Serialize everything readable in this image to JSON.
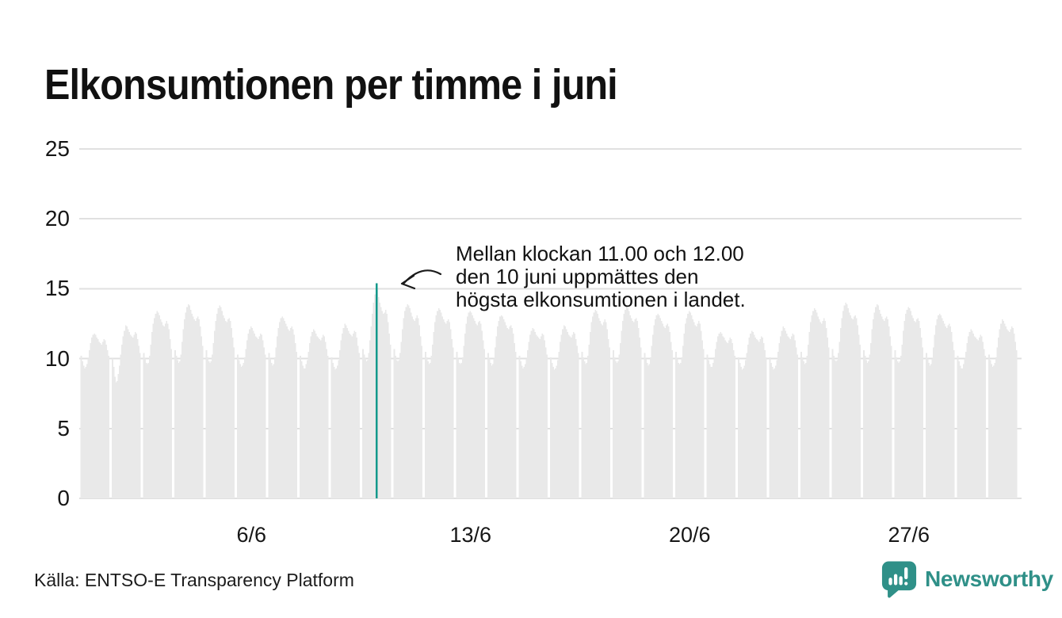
{
  "title": "Elkonsumtionen per timme i juni",
  "annotation": {
    "lines": [
      "Mellan klockan 11.00 och 12.00",
      "den 10 juni uppmättes den",
      "högsta elkonsumtionen i landet."
    ]
  },
  "source": "Källa: ENTSO-E Transparency Platform",
  "logo": {
    "text": "Newsworthy",
    "icon": "speech-bubble-bar-chart-icon"
  },
  "colors": {
    "bar": "#e9e9e9",
    "grid": "#e0e0e0",
    "highlight": "#13998b",
    "text": "#161616",
    "logo_teal": "#2f9088"
  },
  "chart_data": {
    "type": "bar",
    "title": "Elkonsumtionen per timme i juni",
    "xlabel": "",
    "ylabel": "",
    "ylim": [
      0,
      25
    ],
    "y_ticks": [
      0,
      5,
      10,
      15,
      20,
      25
    ],
    "x_tick_labels": [
      {
        "day": 6,
        "label": "6/6"
      },
      {
        "day": 13,
        "label": "13/6"
      },
      {
        "day": 20,
        "label": "20/6"
      },
      {
        "day": 27,
        "label": "27/6"
      }
    ],
    "days": 30,
    "hours_per_day": 24,
    "highlight": {
      "day": 10,
      "hour": 11,
      "value": 15.4,
      "note": "högsta elkonsumtionen"
    },
    "hourly_values_by_day": [
      [
        10.2,
        9.8,
        9.5,
        9.3,
        9.4,
        9.6,
        10.0,
        10.6,
        11.1,
        11.5,
        11.7,
        11.8,
        11.7,
        11.5,
        11.4,
        11.2,
        11.1,
        11.0,
        11.2,
        11.4,
        11.3,
        11.0,
        10.6,
        10.2
      ],
      [
        10.0,
        9.4,
        8.7,
        8.3,
        8.4,
        8.9,
        9.5,
        10.3,
        11.0,
        11.6,
        12.0,
        12.4,
        12.3,
        12.1,
        11.9,
        11.7,
        11.6,
        11.5,
        11.7,
        11.9,
        11.8,
        11.4,
        10.9,
        10.4
      ],
      [
        10.4,
        10.0,
        9.7,
        9.6,
        9.7,
        10.2,
        11.0,
        11.9,
        12.5,
        12.9,
        13.2,
        13.4,
        13.3,
        13.1,
        12.8,
        12.6,
        12.4,
        12.3,
        12.5,
        12.7,
        12.5,
        12.1,
        11.4,
        10.7
      ],
      [
        10.6,
        10.2,
        9.9,
        9.7,
        9.8,
        10.3,
        11.2,
        12.1,
        12.8,
        13.3,
        13.7,
        13.9,
        13.8,
        13.5,
        13.2,
        13.0,
        12.8,
        12.7,
        12.9,
        13.0,
        12.8,
        12.3,
        11.6,
        10.9
      ],
      [
        10.6,
        10.1,
        9.8,
        9.7,
        9.8,
        10.3,
        11.1,
        12.0,
        12.7,
        13.2,
        13.6,
        13.8,
        13.7,
        13.4,
        13.1,
        12.9,
        12.7,
        12.6,
        12.8,
        12.9,
        12.7,
        12.2,
        11.5,
        10.8
      ],
      [
        10.3,
        9.9,
        9.6,
        9.4,
        9.5,
        9.7,
        10.1,
        10.7,
        11.3,
        11.8,
        12.1,
        12.3,
        12.2,
        12.0,
        11.8,
        11.6,
        11.5,
        11.4,
        11.6,
        11.8,
        11.7,
        11.3,
        10.8,
        10.3
      ],
      [
        10.4,
        10.0,
        9.7,
        9.5,
        9.6,
        10.1,
        10.8,
        11.6,
        12.2,
        12.6,
        12.9,
        13.0,
        12.9,
        12.7,
        12.5,
        12.3,
        12.1,
        12.0,
        12.2,
        12.3,
        12.1,
        11.7,
        11.1,
        10.5
      ],
      [
        10.2,
        9.8,
        9.5,
        9.3,
        9.3,
        9.6,
        9.9,
        10.5,
        11.1,
        11.6,
        11.9,
        12.1,
        12.0,
        11.8,
        11.6,
        11.5,
        11.4,
        11.3,
        11.5,
        11.7,
        11.6,
        11.2,
        10.7,
        10.2
      ],
      [
        10.1,
        9.7,
        9.4,
        9.2,
        9.3,
        9.5,
        9.9,
        10.6,
        11.3,
        11.8,
        12.2,
        12.5,
        12.4,
        12.2,
        12.0,
        11.8,
        11.7,
        11.6,
        11.8,
        12.0,
        11.9,
        11.5,
        10.9,
        10.4
      ],
      [
        10.7,
        10.3,
        10.0,
        9.8,
        9.9,
        10.4,
        11.3,
        12.3,
        13.2,
        14.0,
        14.6,
        15.4,
        14.9,
        14.4,
        14.0,
        13.7,
        13.4,
        13.2,
        13.3,
        13.5,
        13.2,
        12.6,
        11.8,
        11.0
      ],
      [
        10.7,
        10.2,
        9.9,
        9.8,
        9.9,
        10.4,
        11.2,
        12.1,
        12.9,
        13.4,
        13.7,
        13.9,
        13.8,
        13.6,
        13.3,
        13.0,
        12.8,
        12.7,
        12.9,
        13.1,
        12.9,
        12.4,
        11.6,
        10.9
      ],
      [
        10.5,
        10.1,
        9.8,
        9.6,
        9.7,
        10.2,
        11.0,
        11.9,
        12.6,
        13.1,
        13.4,
        13.6,
        13.5,
        13.3,
        13.0,
        12.8,
        12.6,
        12.5,
        12.7,
        12.8,
        12.6,
        12.1,
        11.4,
        10.8
      ],
      [
        10.5,
        10.0,
        9.7,
        9.6,
        9.7,
        10.1,
        10.9,
        11.8,
        12.5,
        13.0,
        13.3,
        13.4,
        13.3,
        13.1,
        12.9,
        12.7,
        12.5,
        12.4,
        12.6,
        12.7,
        12.5,
        12.0,
        11.3,
        10.7
      ],
      [
        10.4,
        10.0,
        9.7,
        9.5,
        9.6,
        10.0,
        10.8,
        11.6,
        12.3,
        12.7,
        13.0,
        13.1,
        13.0,
        12.8,
        12.6,
        12.4,
        12.2,
        12.1,
        12.3,
        12.4,
        12.2,
        11.8,
        11.1,
        10.5
      ],
      [
        10.2,
        9.8,
        9.5,
        9.3,
        9.4,
        9.6,
        10.0,
        10.6,
        11.2,
        11.7,
        12.0,
        12.2,
        12.1,
        11.9,
        11.7,
        11.6,
        11.5,
        11.4,
        11.6,
        11.8,
        11.7,
        11.3,
        10.8,
        10.3
      ],
      [
        10.1,
        9.7,
        9.4,
        9.2,
        9.3,
        9.5,
        9.9,
        10.5,
        11.2,
        11.7,
        12.1,
        12.4,
        12.3,
        12.1,
        11.9,
        11.7,
        11.6,
        11.5,
        11.7,
        11.9,
        11.8,
        11.4,
        10.9,
        10.4
      ],
      [
        10.5,
        10.1,
        9.8,
        9.6,
        9.7,
        10.2,
        11.0,
        11.9,
        12.6,
        13.0,
        13.3,
        13.5,
        13.4,
        13.2,
        12.9,
        12.7,
        12.5,
        12.4,
        12.6,
        12.8,
        12.6,
        12.1,
        11.4,
        10.8
      ],
      [
        10.6,
        10.1,
        9.8,
        9.7,
        9.8,
        10.3,
        11.1,
        12.0,
        12.7,
        13.2,
        13.5,
        13.7,
        13.6,
        13.4,
        13.1,
        12.9,
        12.7,
        12.6,
        12.8,
        12.9,
        12.7,
        12.2,
        11.5,
        10.8
      ],
      [
        10.4,
        10.0,
        9.7,
        9.5,
        9.6,
        10.1,
        10.9,
        11.7,
        12.4,
        12.8,
        13.1,
        13.2,
        13.1,
        12.9,
        12.7,
        12.5,
        12.3,
        12.2,
        12.4,
        12.5,
        12.3,
        11.9,
        11.2,
        10.6
      ],
      [
        10.5,
        10.0,
        9.7,
        9.6,
        9.7,
        10.1,
        10.9,
        11.8,
        12.5,
        12.9,
        13.2,
        13.4,
        13.3,
        13.1,
        12.8,
        12.6,
        12.4,
        12.3,
        12.5,
        12.7,
        12.5,
        12.0,
        11.3,
        10.7
      ],
      [
        10.3,
        9.9,
        9.6,
        9.4,
        9.4,
        9.7,
        10.1,
        10.7,
        11.2,
        11.6,
        11.8,
        11.9,
        11.8,
        11.6,
        11.5,
        11.3,
        11.2,
        11.1,
        11.3,
        11.5,
        11.4,
        11.1,
        10.6,
        10.2
      ],
      [
        10.1,
        9.7,
        9.4,
        9.2,
        9.3,
        9.5,
        9.9,
        10.4,
        11.0,
        11.5,
        11.8,
        12.0,
        11.9,
        11.7,
        11.5,
        11.4,
        11.3,
        11.2,
        11.4,
        11.6,
        11.5,
        11.1,
        10.6,
        10.1
      ],
      [
        10.1,
        9.7,
        9.4,
        9.2,
        9.3,
        9.5,
        9.9,
        10.5,
        11.1,
        11.6,
        12.0,
        12.3,
        12.2,
        12.0,
        11.8,
        11.6,
        11.5,
        11.4,
        11.6,
        11.8,
        11.7,
        11.3,
        10.8,
        10.3
      ],
      [
        10.5,
        10.1,
        9.8,
        9.6,
        9.7,
        10.2,
        11.0,
        11.9,
        12.6,
        13.1,
        13.4,
        13.6,
        13.5,
        13.3,
        13.0,
        12.8,
        12.6,
        12.5,
        12.7,
        12.9,
        12.7,
        12.2,
        11.5,
        10.8
      ],
      [
        10.7,
        10.2,
        9.9,
        9.8,
        9.9,
        10.4,
        11.2,
        12.2,
        12.9,
        13.4,
        13.8,
        14.0,
        13.9,
        13.6,
        13.3,
        13.1,
        12.9,
        12.8,
        13.0,
        13.1,
        12.9,
        12.4,
        11.7,
        11.0
      ],
      [
        10.6,
        10.2,
        9.9,
        9.7,
        9.8,
        10.3,
        11.1,
        12.1,
        12.8,
        13.3,
        13.7,
        13.9,
        13.8,
        13.5,
        13.2,
        13.0,
        12.8,
        12.7,
        12.9,
        13.0,
        12.8,
        12.3,
        11.6,
        10.9
      ],
      [
        10.6,
        10.1,
        9.8,
        9.7,
        9.8,
        10.2,
        11.0,
        12.0,
        12.7,
        13.2,
        13.5,
        13.7,
        13.6,
        13.4,
        13.1,
        12.9,
        12.7,
        12.6,
        12.8,
        12.9,
        12.7,
        12.2,
        11.5,
        10.8
      ],
      [
        10.4,
        10.0,
        9.7,
        9.5,
        9.6,
        10.0,
        10.8,
        11.7,
        12.4,
        12.8,
        13.1,
        13.2,
        13.1,
        12.9,
        12.7,
        12.5,
        12.3,
        12.2,
        12.4,
        12.5,
        12.3,
        11.9,
        11.2,
        10.6
      ],
      [
        10.2,
        9.8,
        9.5,
        9.3,
        9.3,
        9.6,
        10.0,
        10.5,
        11.1,
        11.6,
        11.9,
        12.1,
        12.0,
        11.8,
        11.6,
        11.5,
        11.4,
        11.3,
        11.5,
        11.7,
        11.6,
        11.2,
        10.7,
        10.2
      ],
      [
        10.3,
        9.9,
        9.6,
        9.4,
        9.5,
        9.7,
        10.1,
        10.8,
        11.5,
        12.1,
        12.5,
        12.8,
        12.7,
        12.5,
        12.3,
        12.1,
        12.0,
        11.9,
        12.1,
        12.3,
        12.2,
        11.8,
        11.2,
        10.6
      ]
    ]
  }
}
